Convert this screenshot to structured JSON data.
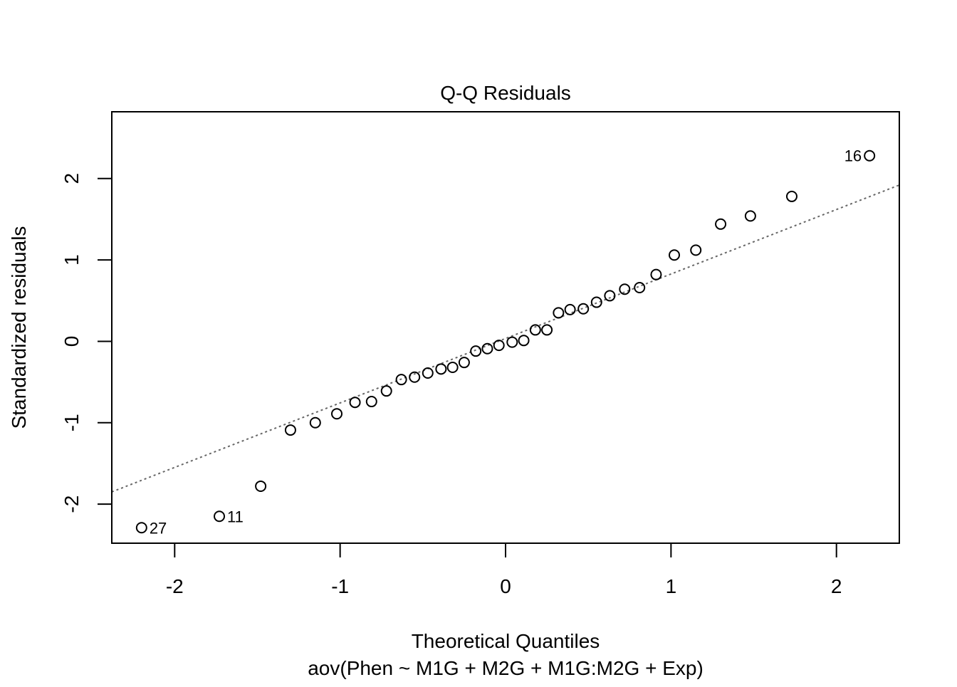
{
  "chart_data": {
    "type": "scatter",
    "title": "Q-Q Residuals",
    "xlabel": "Theoretical Quantiles",
    "subtitle": "aov(Phen ~ M1G + M2G + M1G:M2G + Exp)",
    "ylabel": "Standardized residuals",
    "xlim": [
      -2.38,
      2.38
    ],
    "ylim": [
      -2.48,
      2.82
    ],
    "xticks": [
      -2,
      -1,
      0,
      1,
      2
    ],
    "xtick_labels": [
      "-2",
      "-1",
      "0",
      "1",
      "2"
    ],
    "yticks": [
      -2,
      -1,
      0,
      1,
      2
    ],
    "ytick_labels": [
      "-2",
      "-1",
      "0",
      "1",
      "2"
    ],
    "grid": false,
    "points": [
      {
        "x": -2.2,
        "y": -2.29,
        "label": "27"
      },
      {
        "x": -1.73,
        "y": -2.15,
        "label": "11"
      },
      {
        "x": -1.48,
        "y": -1.78
      },
      {
        "x": -1.3,
        "y": -1.09
      },
      {
        "x": -1.15,
        "y": -1.0
      },
      {
        "x": -1.02,
        "y": -0.89
      },
      {
        "x": -0.91,
        "y": -0.75
      },
      {
        "x": -0.81,
        "y": -0.74
      },
      {
        "x": -0.72,
        "y": -0.61
      },
      {
        "x": -0.63,
        "y": -0.47
      },
      {
        "x": -0.55,
        "y": -0.44
      },
      {
        "x": -0.47,
        "y": -0.39
      },
      {
        "x": -0.39,
        "y": -0.34
      },
      {
        "x": -0.32,
        "y": -0.32
      },
      {
        "x": -0.25,
        "y": -0.26
      },
      {
        "x": -0.18,
        "y": -0.12
      },
      {
        "x": -0.11,
        "y": -0.09
      },
      {
        "x": -0.04,
        "y": -0.05
      },
      {
        "x": 0.04,
        "y": -0.01
      },
      {
        "x": 0.11,
        "y": 0.01
      },
      {
        "x": 0.18,
        "y": 0.14
      },
      {
        "x": 0.25,
        "y": 0.14
      },
      {
        "x": 0.32,
        "y": 0.35
      },
      {
        "x": 0.39,
        "y": 0.39
      },
      {
        "x": 0.47,
        "y": 0.4
      },
      {
        "x": 0.55,
        "y": 0.48
      },
      {
        "x": 0.63,
        "y": 0.56
      },
      {
        "x": 0.72,
        "y": 0.64
      },
      {
        "x": 0.81,
        "y": 0.66
      },
      {
        "x": 0.91,
        "y": 0.82
      },
      {
        "x": 1.02,
        "y": 1.06
      },
      {
        "x": 1.15,
        "y": 1.12
      },
      {
        "x": 1.3,
        "y": 1.44
      },
      {
        "x": 1.48,
        "y": 1.54
      },
      {
        "x": 1.73,
        "y": 1.78
      },
      {
        "x": 2.2,
        "y": 2.28,
        "label": "16"
      }
    ],
    "reference_line": {
      "x": [
        -2.38,
        2.38
      ],
      "y": [
        -1.85,
        1.92
      ]
    },
    "colors": {
      "points": "#000000",
      "reference_line": "#666666",
      "axes": "#000000"
    }
  }
}
